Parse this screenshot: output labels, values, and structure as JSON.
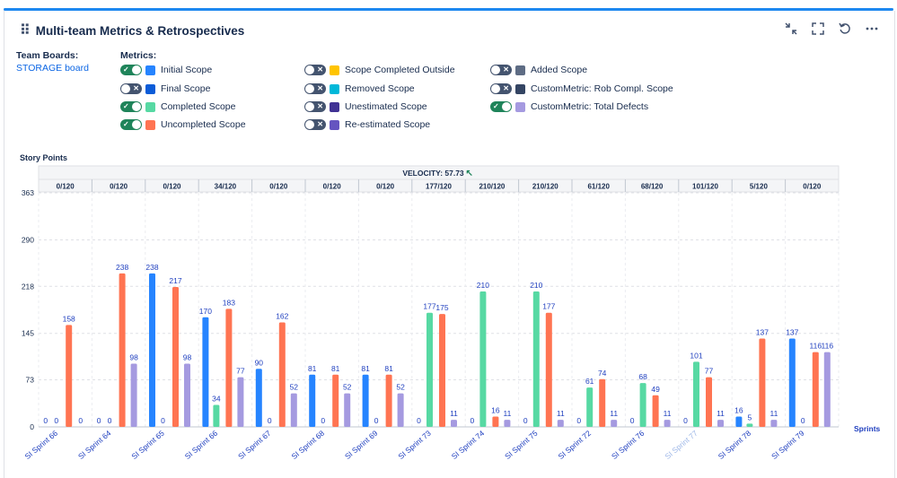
{
  "panel": {
    "title": "Multi-team Metrics & Retrospectives",
    "icons": [
      "collapse-icon",
      "fullscreen-icon",
      "refresh-icon",
      "more-icon"
    ]
  },
  "team_boards": {
    "label": "Team Boards:",
    "board": "STORAGE board"
  },
  "metrics": {
    "label": "Metrics:",
    "items": [
      {
        "label": "Initial Scope",
        "on": true,
        "color": "#2684ff"
      },
      {
        "label": "Final Scope",
        "on": false,
        "color": "#0b5cd8"
      },
      {
        "label": "Completed Scope",
        "on": true,
        "color": "#57d9a3"
      },
      {
        "label": "Uncompleted Scope",
        "on": true,
        "color": "#ff7452"
      },
      {
        "label": "Scope Completed Outside",
        "on": false,
        "color": "#ffc400"
      },
      {
        "label": "Removed Scope",
        "on": false,
        "color": "#00b8d9"
      },
      {
        "label": "Unestimated Scope",
        "on": false,
        "color": "#403294"
      },
      {
        "label": "Re-estimated Scope",
        "on": false,
        "color": "#6554c0"
      },
      {
        "label": "Added Scope",
        "on": false,
        "color": "#5e6c84"
      },
      {
        "label": "CustomMetric: Rob Compl. Scope",
        "on": false,
        "color": "#344563"
      },
      {
        "label": "CustomMetric: Total Defects",
        "on": true,
        "color": "#a59ae0"
      }
    ]
  },
  "chart_data": {
    "type": "bar",
    "ylabel": "Story Points",
    "xlabel": "Sprints",
    "velocity_label": "VELOCITY: 57.73",
    "velocity_arrow": "↖",
    "ylim": [
      0,
      363
    ],
    "yticks": [
      0,
      73,
      145,
      218,
      290,
      363
    ],
    "categories": [
      "SI Sprint 66",
      "SI Sprint 64",
      "SI Sprint 65",
      "SI Sprint 66",
      "SI Sprint 67",
      "SI Sprint 68",
      "SI Sprint 69",
      "SI Sprint 73",
      "SI Sprint 74",
      "SI Sprint 75",
      "SI Sprint 72",
      "SI Sprint 76",
      "SI Sprint 77",
      "SI Sprint 78",
      "SI Sprint 79"
    ],
    "category_dimmed": [
      false,
      false,
      false,
      false,
      false,
      false,
      false,
      false,
      false,
      false,
      false,
      false,
      true,
      false,
      false
    ],
    "ratios": [
      "0/120",
      "0/120",
      "0/120",
      "34/120",
      "0/120",
      "0/120",
      "0/120",
      "177/120",
      "210/120",
      "210/120",
      "61/120",
      "68/120",
      "101/120",
      "5/120",
      "0/120"
    ],
    "series": [
      {
        "name": "Initial Scope",
        "color": "#2684ff",
        "values": [
          0,
          0,
          238,
          170,
          90,
          81,
          81,
          0,
          0,
          0,
          0,
          0,
          0,
          16,
          137
        ]
      },
      {
        "name": "Completed Scope",
        "color": "#57d9a3",
        "values": [
          0,
          0,
          0,
          34,
          0,
          0,
          0,
          177,
          210,
          210,
          61,
          68,
          101,
          5,
          0
        ]
      },
      {
        "name": "Uncompleted Scope",
        "color": "#ff7452",
        "values": [
          158,
          238,
          217,
          183,
          162,
          81,
          81,
          175,
          16,
          177,
          74,
          49,
          77,
          137,
          116
        ]
      },
      {
        "name": "CustomMetric: Total Defects",
        "color": "#a59ae0",
        "values": [
          0,
          98,
          98,
          77,
          52,
          52,
          52,
          11,
          11,
          11,
          11,
          11,
          11,
          11,
          116
        ]
      }
    ]
  }
}
